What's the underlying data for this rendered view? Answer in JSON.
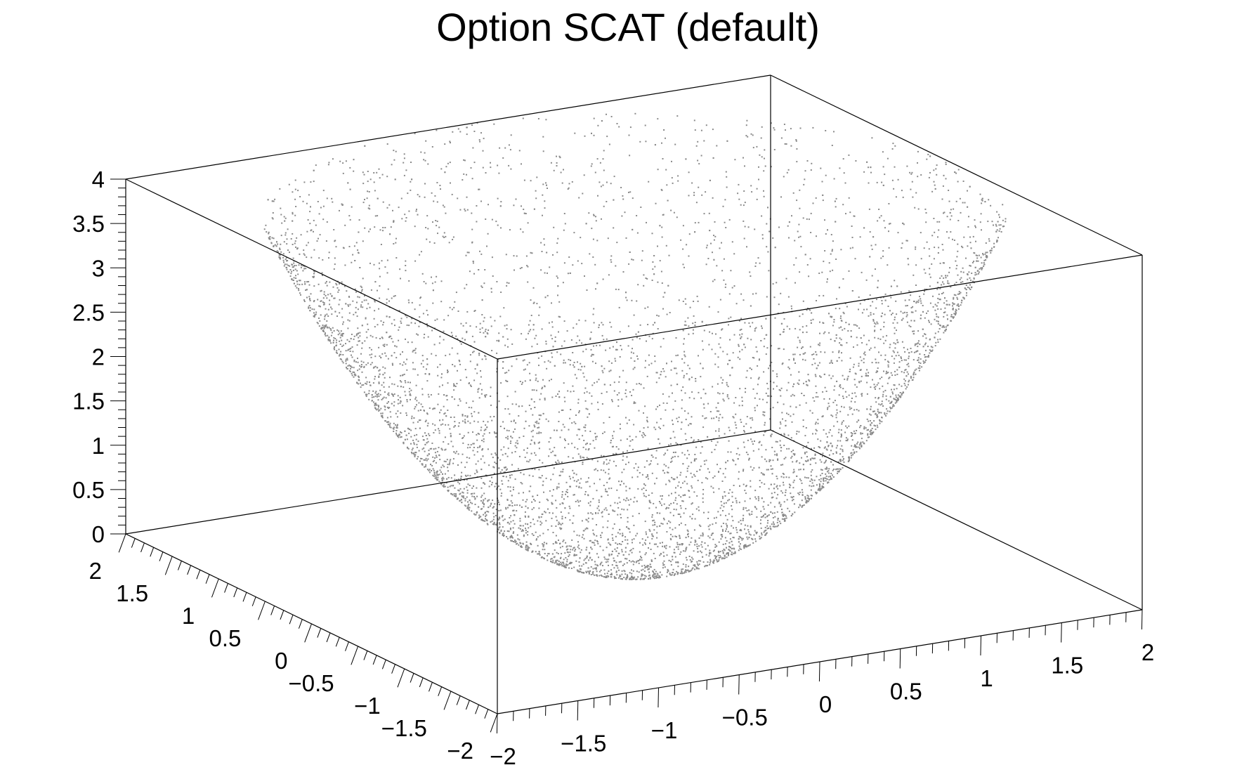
{
  "chart_data": {
    "type": "scatter",
    "subtype": "3d-scatter",
    "title": "Option SCAT (default)",
    "xlabel": "",
    "ylabel": "",
    "zlabel": "",
    "xlim": [
      -2,
      2
    ],
    "ylim": [
      -2,
      2
    ],
    "zlim": [
      0,
      4
    ],
    "x_ticks": [
      "−2",
      "−1.5",
      "−1",
      "−0.5",
      "0",
      "0.5",
      "1",
      "1.5",
      "2"
    ],
    "y_ticks": [
      "−2",
      "−1.5",
      "−1",
      "−0.5",
      "0",
      "0.5",
      "1",
      "1.5",
      "2"
    ],
    "z_ticks": [
      "0",
      "0.5",
      "1",
      "1.5",
      "2",
      "2.5",
      "3",
      "3.5",
      "4"
    ],
    "x_tick_values": [
      -2,
      -1.5,
      -1,
      -0.5,
      0,
      0.5,
      1,
      1.5,
      2
    ],
    "y_tick_values": [
      -2,
      -1.5,
      -1,
      -0.5,
      0,
      0.5,
      1,
      1.5,
      2
    ],
    "z_tick_values": [
      0,
      0.5,
      1,
      1.5,
      2,
      2.5,
      3,
      3.5,
      4
    ],
    "surface": "z = x^2 + y^2 (paraboloid, points sampled uniformly over x,y in [-2,2], z clipped at 4)",
    "n_points": 9000,
    "point_color": "#8a8a8a",
    "frame_color": "#000000",
    "grid": false,
    "legend": "none"
  }
}
